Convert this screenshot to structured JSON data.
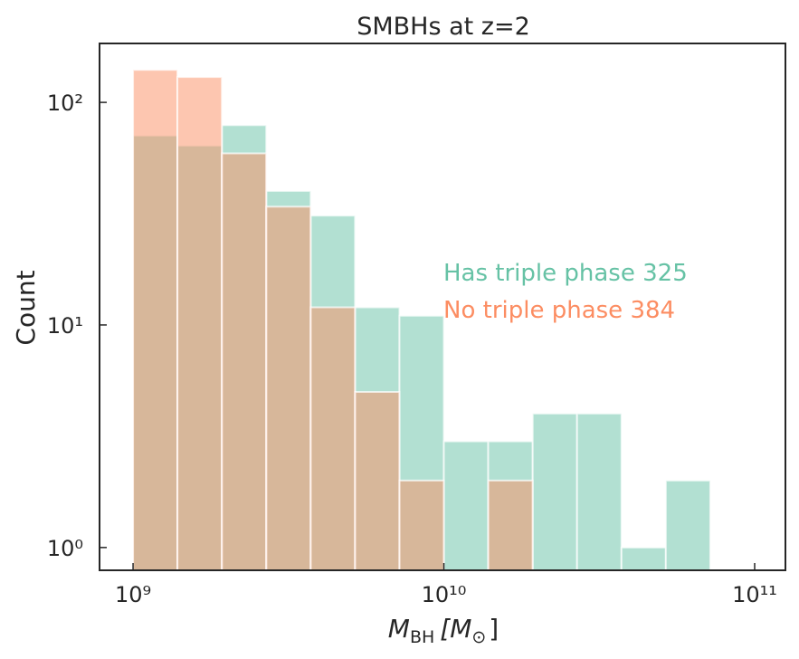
{
  "chart_data": {
    "type": "histogram",
    "title": "SMBHs at z=2",
    "xlabel": [
      "M",
      "BH",
      "[M",
      "⊙",
      "]"
    ],
    "ylabel": "Count",
    "xscale": "log",
    "yscale": "log",
    "bins": [
      1000000000,
      1389000000,
      1931000000,
      2683000000,
      3728000000,
      5179000000,
      7197000000,
      10000000000,
      13890000000,
      19310000000,
      26830000000,
      37280000000,
      51790000000,
      71970000000,
      100000000000
    ],
    "series": [
      {
        "name": "Has triple phase",
        "color": "#66c2a5",
        "values": [
          71,
          64,
          79,
          40,
          31,
          12,
          11,
          3,
          3,
          4,
          4,
          1,
          2,
          0
        ]
      },
      {
        "name": "No triple phase",
        "color": "#fc8d62",
        "values": [
          140,
          130,
          59,
          34,
          12,
          5,
          2,
          0,
          2,
          0,
          0,
          0,
          0,
          0
        ]
      }
    ],
    "annotations": [
      {
        "text": "Has triple phase 325",
        "color": "#66c2a5"
      },
      {
        "text": "No triple phase 384",
        "color": "#fc8d62"
      }
    ],
    "xlim": [
      780000000,
      125600000000
    ],
    "ylim": [
      0.79,
      184
    ],
    "xticks": [
      {
        "value": 1000000000,
        "label": "10⁹"
      },
      {
        "value": 10000000000,
        "label": "10¹⁰"
      },
      {
        "value": 100000000000,
        "label": "10¹¹"
      }
    ],
    "yticks": [
      {
        "value": 1,
        "label": "10⁰"
      },
      {
        "value": 10,
        "label": "10¹"
      },
      {
        "value": 100,
        "label": "10²"
      }
    ]
  }
}
